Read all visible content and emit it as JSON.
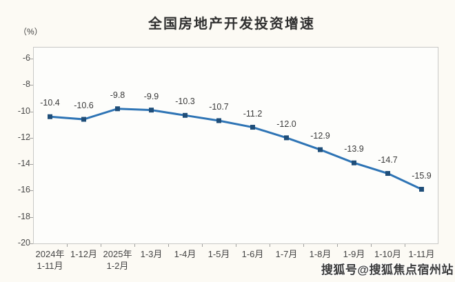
{
  "page": {
    "watermark": "搜狐号@搜狐焦点宿州站"
  },
  "chart_data": {
    "type": "line",
    "title": "全国房地产开发投资增速",
    "unit_label": "（%）",
    "categories": [
      [
        "2024年",
        "1-11月"
      ],
      [
        "1-12月"
      ],
      [
        "2025年",
        "1-2月"
      ],
      [
        "1-3月"
      ],
      [
        "1-4月"
      ],
      [
        "1-5月"
      ],
      [
        "1-6月"
      ],
      [
        "1-7月"
      ],
      [
        "1-8月"
      ],
      [
        "1-9月"
      ],
      [
        "1-10月"
      ],
      [
        "1-11月"
      ]
    ],
    "values": [
      -10.4,
      -10.6,
      -9.8,
      -9.9,
      -10.3,
      -10.7,
      -11.2,
      -12.0,
      -12.9,
      -13.9,
      -14.7,
      -15.9
    ],
    "data_labels": [
      "-10.4",
      "-10.6",
      "-9.8",
      "-9.9",
      "-10.3",
      "-10.7",
      "-11.2",
      "-12.0",
      "-12.9",
      "-13.9",
      "-14.7",
      "-15.9"
    ],
    "y_ticks": [
      -6,
      -8,
      -10,
      -12,
      -14,
      -16,
      -18,
      -20
    ],
    "ylim": [
      -20,
      -5
    ],
    "xlabel": "",
    "ylabel": "（%）",
    "grid": false,
    "legend": "none",
    "colors": {
      "line": "#2E74B5",
      "marker": "#1F4E79",
      "label_text": "#3a3a3a",
      "axis_text": "#454545",
      "plot_border": "#c8c8c6",
      "background": "#fcfaf4"
    }
  }
}
